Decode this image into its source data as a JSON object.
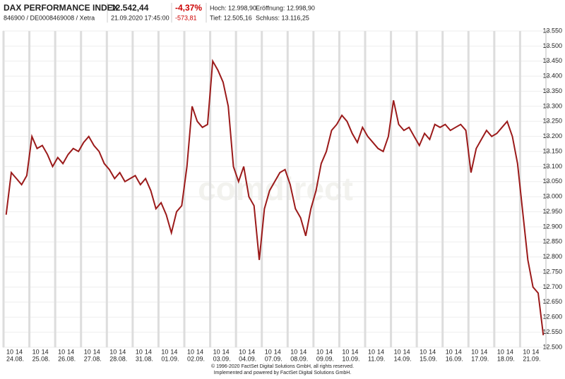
{
  "header": {
    "title": "DAX PERFORMANCE INDEX",
    "price": "12.542,44",
    "change_pct": "-4,37%",
    "high": "Hoch: 12.998,90",
    "open": "Eröffnung: 12.998,90",
    "id": "846900 / DE0008469008 / Xetra",
    "timestamp": "21.09.2020 17:45:00",
    "change_abs": "-573,81",
    "low": "Tief: 12.505,16",
    "close": "Schluss: 13.116,25"
  },
  "chart_data": {
    "type": "line",
    "color": "#9b1a1a",
    "watermark": "comdirect",
    "hour_labels": [
      "10",
      "14"
    ],
    "days": [
      {
        "label": "24.08.",
        "values": [
          12940,
          13080,
          13060,
          13040,
          13070
        ]
      },
      {
        "label": "25.08.",
        "values": [
          13200,
          13160,
          13170,
          13140,
          13100
        ]
      },
      {
        "label": "26.08.",
        "values": [
          13130,
          13110,
          13140,
          13160,
          13150
        ]
      },
      {
        "label": "27.08.",
        "values": [
          13180,
          13200,
          13170,
          13150,
          13110
        ]
      },
      {
        "label": "28.08.",
        "values": [
          13090,
          13060,
          13080,
          13050,
          13060
        ]
      },
      {
        "label": "31.08.",
        "values": [
          13070,
          13040,
          13060,
          13020,
          12960
        ]
      },
      {
        "label": "01.09.",
        "values": [
          12980,
          12940,
          12880,
          12950,
          12970
        ]
      },
      {
        "label": "02.09.",
        "values": [
          13100,
          13300,
          13250,
          13230,
          13240
        ]
      },
      {
        "label": "03.09.",
        "values": [
          13450,
          13420,
          13380,
          13300,
          13100
        ]
      },
      {
        "label": "04.09.",
        "values": [
          13050,
          13100,
          13000,
          12970,
          12790
        ]
      },
      {
        "label": "07.09.",
        "values": [
          12960,
          13020,
          13050,
          13080,
          13090
        ]
      },
      {
        "label": "08.09.",
        "values": [
          13040,
          12960,
          12930,
          12870,
          12960
        ]
      },
      {
        "label": "09.09.",
        "values": [
          13020,
          13110,
          13150,
          13220,
          13240
        ]
      },
      {
        "label": "10.09.",
        "values": [
          13270,
          13250,
          13210,
          13180,
          13230
        ]
      },
      {
        "label": "11.09.",
        "values": [
          13200,
          13180,
          13160,
          13150,
          13200
        ]
      },
      {
        "label": "14.09.",
        "values": [
          13320,
          13240,
          13220,
          13230,
          13200
        ]
      },
      {
        "label": "15.09.",
        "values": [
          13170,
          13210,
          13190,
          13240,
          13230
        ]
      },
      {
        "label": "16.09.",
        "values": [
          13240,
          13220,
          13230,
          13240,
          13220
        ]
      },
      {
        "label": "17.09.",
        "values": [
          13080,
          13160,
          13190,
          13220,
          13200
        ]
      },
      {
        "label": "18.09.",
        "values": [
          13210,
          13230,
          13250,
          13200,
          13110
        ]
      },
      {
        "label": "21.09.",
        "values": [
          12950,
          12790,
          12700,
          12680,
          12540
        ]
      }
    ],
    "ylim": [
      12500,
      13550
    ],
    "yticks": [
      {
        "value": 12500,
        "label": "12.500"
      },
      {
        "value": 12550,
        "label": "12.550"
      },
      {
        "value": 12600,
        "label": "12.600"
      },
      {
        "value": 12650,
        "label": "12.650"
      },
      {
        "value": 12700,
        "label": "12.700"
      },
      {
        "value": 12750,
        "label": "12.750"
      },
      {
        "value": 12800,
        "label": "12.800"
      },
      {
        "value": 12850,
        "label": "12.850"
      },
      {
        "value": 12900,
        "label": "12.900"
      },
      {
        "value": 12950,
        "label": "12.950"
      },
      {
        "value": 13000,
        "label": "13.000"
      },
      {
        "value": 13050,
        "label": "13.050"
      },
      {
        "value": 13100,
        "label": "13.100"
      },
      {
        "value": 13150,
        "label": "13.150"
      },
      {
        "value": 13200,
        "label": "13.200"
      },
      {
        "value": 13250,
        "label": "13.250"
      },
      {
        "value": 13300,
        "label": "13.300"
      },
      {
        "value": 13350,
        "label": "13.350"
      },
      {
        "value": 13400,
        "label": "13.400"
      },
      {
        "value": 13450,
        "label": "13.450"
      },
      {
        "value": 13500,
        "label": "13.500"
      },
      {
        "value": 13550,
        "label": "13.550"
      }
    ],
    "grid": true
  },
  "footer": {
    "line1": "© 1996-2020 FactSet Digital Solutions GmbH, all rights reserved.",
    "line2": "Implemented and powered by FactSet Digital Solutions GmbH."
  }
}
